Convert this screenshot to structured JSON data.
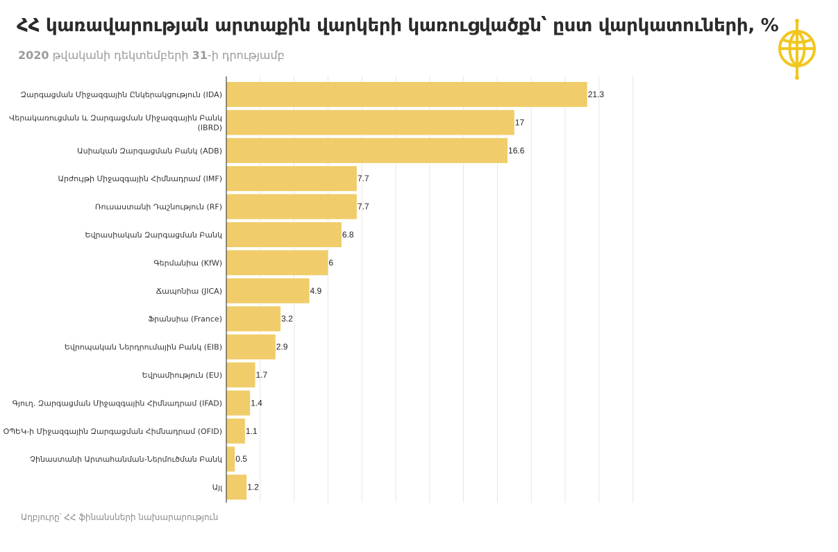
{
  "header": {
    "title": "ՀՀ կառավարության արտաքին վարկերի կառուցվածքն՝ ըստ վարկատուների, %",
    "subtitle_year": "2020",
    "subtitle_rest": " թվականի դեկտեմբերի ",
    "subtitle_day": "31",
    "subtitle_end": "-ի դրությամբ"
  },
  "logo": {
    "icon": "globe-logo-icon",
    "color": "#f2c61f"
  },
  "footer": {
    "source": "Աղբյուրը՝ ՀՀ ֆինանսների նախարարություն"
  },
  "colors": {
    "bar": "#f0cd6a",
    "grid": "#e6e6e6",
    "axis": "#444444"
  },
  "chart_data": {
    "type": "bar",
    "orientation": "horizontal",
    "categories": [
      "Զարգացման Միջազգային Ընկերակցություն (IDA)",
      "Վերակառուցման և Զարգացման Միջազգային Բանկ (IBRD)",
      "Ասիական Զարգացման Բանկ (ADB)",
      "Արժույթի Միջազգային Հիմնադրամ (IMF)",
      "Ռուսաստանի Դաշնություն (RF)",
      "Եվրասիական Զարգացման Բանկ",
      "Գերմանիա (KfW)",
      "Ճապոնիա (JICA)",
      "Ֆրանսիա (France)",
      "Եվրոպական Ներդրումային Բանկ (EIB)",
      "Եվրամիություն (EU)",
      "Գյուղ. Զարգացման Միջազգային Հիմնադրամ (IFAD)",
      "ՕՊԵԿ-ի Միջազգային Զարգացման Հիմնադրամ (OFID)",
      "Չինաստանի Արտահանման-Ներմուծման Բանկ",
      "Այլ"
    ],
    "category_lines": [
      [
        "Զարգացման Միջազգային Ընկերակցություն (IDA)"
      ],
      [
        "Վերակառուցման և Զարգացման Միջազգային Բանկ",
        "(IBRD)"
      ],
      [
        "Ասիական Զարգացման Բանկ (ADB)"
      ],
      [
        "Արժույթի Միջազգային Հիմնադրամ (IMF)"
      ],
      [
        "Ռուսաստանի Դաշնություն (RF)"
      ],
      [
        "Եվրասիական Զարգացման Բանկ"
      ],
      [
        "Գերմանիա (KfW)"
      ],
      [
        "Ճապոնիա (JICA)"
      ],
      [
        "Ֆրանսիա (France)"
      ],
      [
        "Եվրոպական Ներդրումային Բանկ (EIB)"
      ],
      [
        "Եվրամիություն (EU)"
      ],
      [
        "Գյուղ. Զարգացման Միջազգային Հիմնադրամ (IFAD)"
      ],
      [
        "ՕՊԵԿ-ի Միջազգային Զարգացման Հիմնադրամ (OFID)"
      ],
      [
        "Չինաստանի Արտահանման-Ներմուծման Բանկ"
      ],
      [
        "Այլ"
      ]
    ],
    "values": [
      21.3,
      17,
      16.6,
      7.7,
      7.7,
      6.8,
      6,
      4.9,
      3.2,
      2.9,
      1.7,
      1.4,
      1.1,
      0.5,
      1.2
    ],
    "value_labels": [
      "21.3",
      "17",
      "16.6",
      "7.7",
      "7.7",
      "6.8",
      "6",
      "4.9",
      "3.2",
      "2.9",
      "1.7",
      "1.4",
      "1.1",
      "0.5",
      "1.2"
    ],
    "xlim": [
      0,
      24
    ],
    "grid_step": 2,
    "grid": true,
    "legend": false
  }
}
